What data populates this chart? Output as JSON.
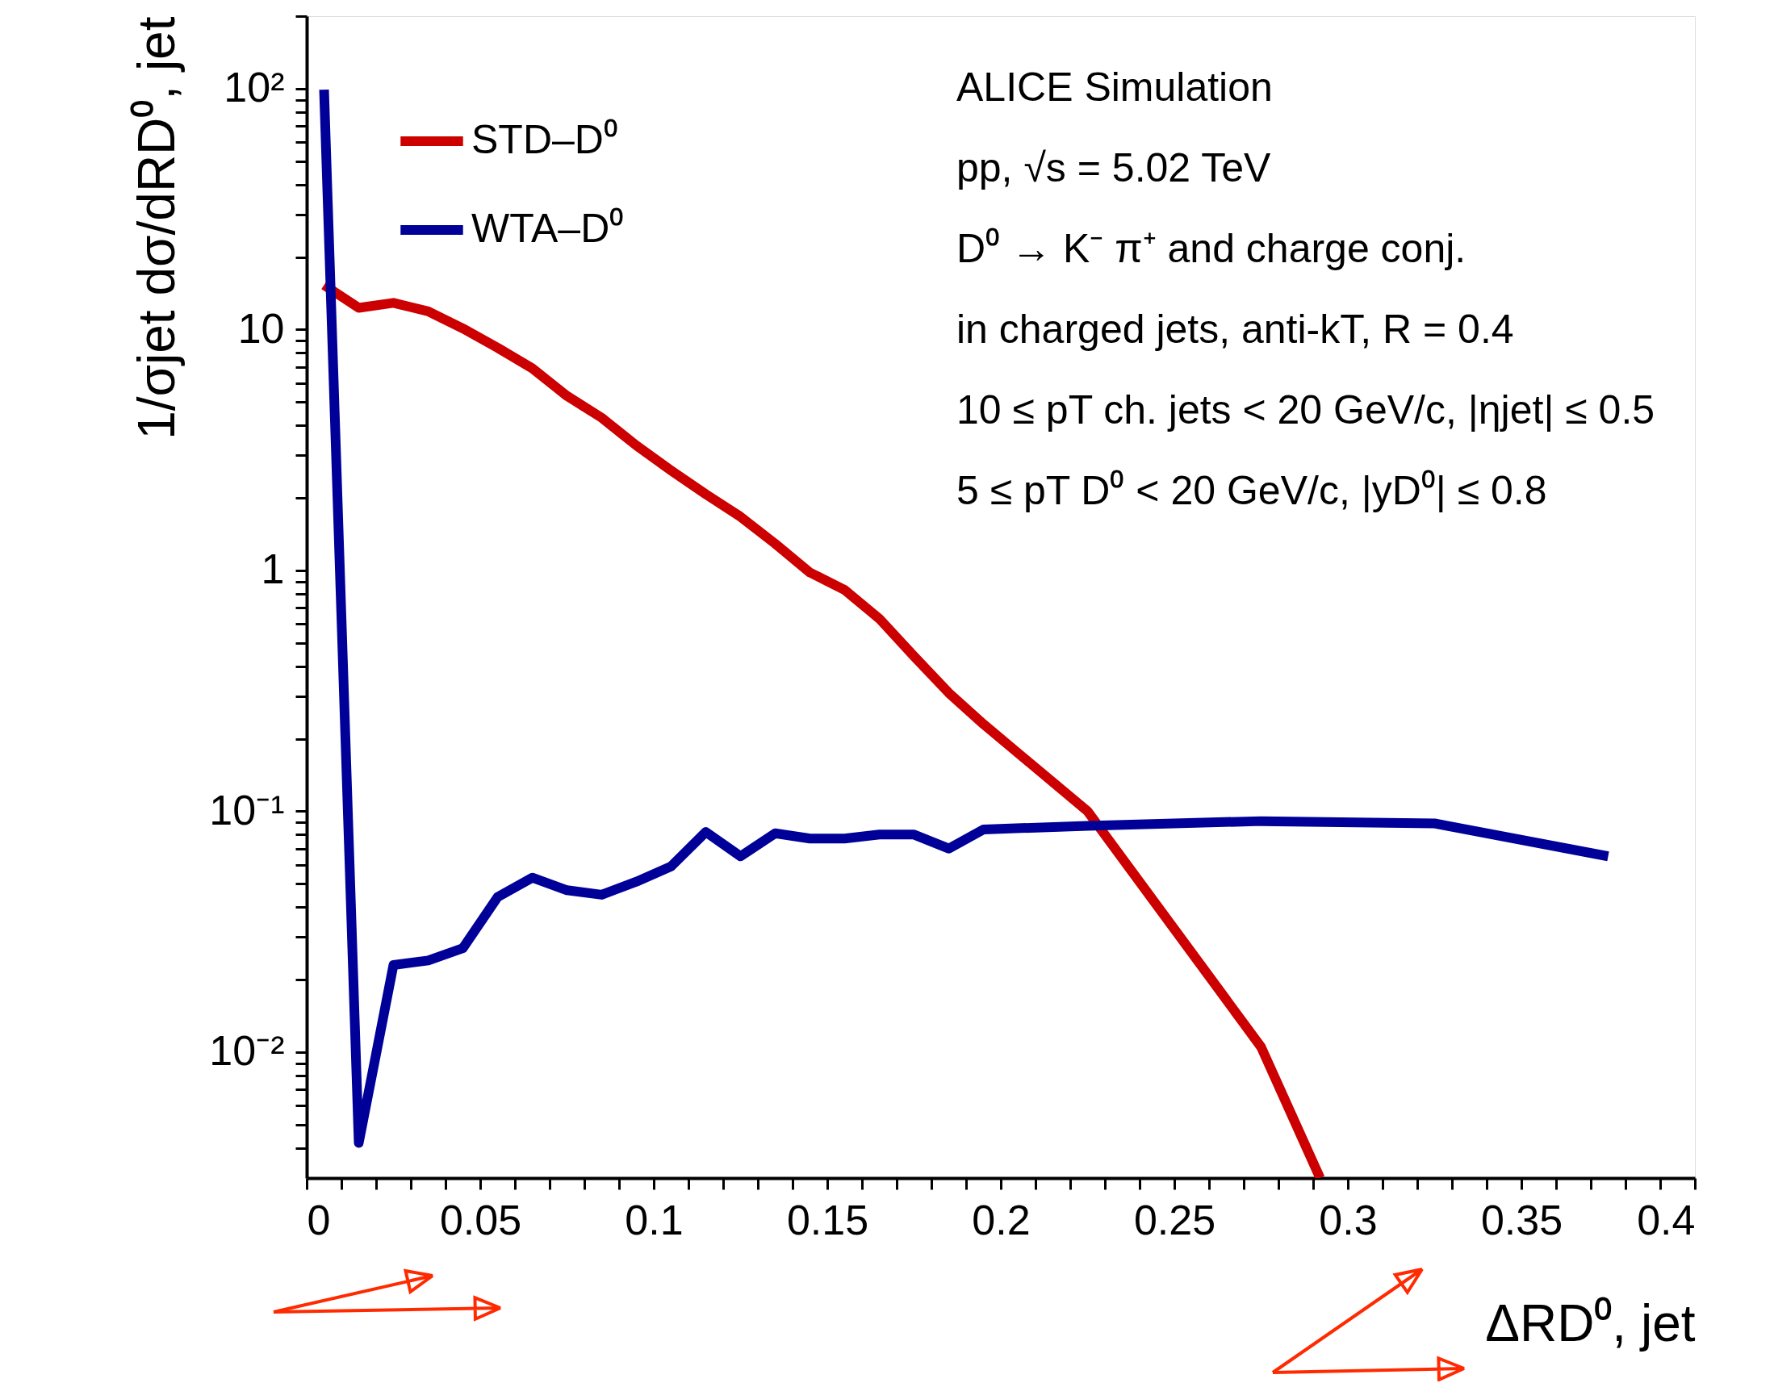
{
  "chart_data": {
    "type": "line",
    "xlabel": "ΔRD⁰, jet",
    "ylabel": "1/σjet dσ/dRD⁰, jet",
    "log": "y",
    "xlim": [
      0,
      0.4
    ],
    "ylim": [
      0.003,
      200
    ],
    "xticks": [
      0,
      {
        "value": 0.01,
        "label": null
      },
      {
        "value": 0.02,
        "label": null
      },
      {
        "value": 0.03,
        "label": null
      },
      {
        "value": 0.04,
        "label": null
      },
      0.05,
      {
        "value": 0.06,
        "label": null
      },
      {
        "value": 0.07,
        "label": null
      },
      {
        "value": 0.08,
        "label": null
      },
      {
        "value": 0.09,
        "label": null
      },
      0.1,
      {
        "value": 0.11,
        "label": null
      },
      {
        "value": 0.12,
        "label": null
      },
      {
        "value": 0.13,
        "label": null
      },
      {
        "value": 0.14,
        "label": null
      },
      0.15,
      {
        "value": 0.16,
        "label": null
      },
      {
        "value": 0.17,
        "label": null
      },
      {
        "value": 0.18,
        "label": null
      },
      {
        "value": 0.19,
        "label": null
      },
      0.2,
      {
        "value": 0.21,
        "label": null
      },
      {
        "value": 0.22,
        "label": null
      },
      {
        "value": 0.23,
        "label": null
      },
      {
        "value": 0.24,
        "label": null
      },
      0.25,
      {
        "value": 0.26,
        "label": null
      },
      {
        "value": 0.27,
        "label": null
      },
      {
        "value": 0.28,
        "label": null
      },
      {
        "value": 0.29,
        "label": null
      },
      0.3,
      {
        "value": 0.31,
        "label": null
      },
      {
        "value": 0.32,
        "label": null
      },
      {
        "value": 0.33,
        "label": null
      },
      {
        "value": 0.34,
        "label": null
      },
      0.35,
      {
        "value": 0.36,
        "label": null
      },
      {
        "value": 0.37,
        "label": null
      },
      {
        "value": 0.38,
        "label": null
      },
      {
        "value": 0.39,
        "label": null
      },
      0.4
    ],
    "yticks": [
      {
        "value": 0.004,
        "label": null
      },
      {
        "value": 0.005,
        "label": null
      },
      {
        "value": 0.006,
        "label": null
      },
      {
        "value": 0.007,
        "label": null
      },
      {
        "value": 0.008,
        "label": null
      },
      {
        "value": 0.009,
        "label": null
      },
      {
        "value": 0.01,
        "label": "10⁻²"
      },
      {
        "value": 0.02,
        "label": null
      },
      {
        "value": 0.03,
        "label": null
      },
      {
        "value": 0.04,
        "label": null
      },
      {
        "value": 0.05,
        "label": null
      },
      {
        "value": 0.06,
        "label": null
      },
      {
        "value": 0.07,
        "label": null
      },
      {
        "value": 0.08,
        "label": null
      },
      {
        "value": 0.09,
        "label": null
      },
      {
        "value": 0.1,
        "label": "10⁻¹"
      },
      {
        "value": 0.2,
        "label": null
      },
      {
        "value": 0.3,
        "label": null
      },
      {
        "value": 0.4,
        "label": null
      },
      {
        "value": 0.5,
        "label": null
      },
      {
        "value": 0.6,
        "label": null
      },
      {
        "value": 0.7,
        "label": null
      },
      {
        "value": 0.8,
        "label": null
      },
      {
        "value": 0.9,
        "label": null
      },
      1,
      {
        "value": 2,
        "label": null
      },
      {
        "value": 3,
        "label": null
      },
      {
        "value": 4,
        "label": null
      },
      {
        "value": 5,
        "label": null
      },
      {
        "value": 6,
        "label": null
      },
      {
        "value": 7,
        "label": null
      },
      {
        "value": 8,
        "label": null
      },
      {
        "value": 9,
        "label": null
      },
      10,
      {
        "value": 20,
        "label": null
      },
      {
        "value": 30,
        "label": null
      },
      {
        "value": 40,
        "label": null
      },
      {
        "value": 50,
        "label": null
      },
      {
        "value": 60,
        "label": null
      },
      {
        "value": 70,
        "label": null
      },
      {
        "value": 80,
        "label": null
      },
      {
        "value": 90,
        "label": null
      },
      {
        "value": 100,
        "label": "10²"
      },
      {
        "value": 200,
        "label": null
      }
    ],
    "legend": "top left",
    "grid": false,
    "series": [
      {
        "name": "STD–D⁰",
        "color": "#cc0000",
        "x": [
          0.005,
          0.015,
          0.025,
          0.035,
          0.045,
          0.055,
          0.065,
          0.075,
          0.085,
          0.095,
          0.105,
          0.115,
          0.125,
          0.135,
          0.145,
          0.155,
          0.165,
          0.175,
          0.185,
          0.195,
          0.225,
          0.275,
          0.292
        ],
        "values": [
          15.3,
          12.3,
          12.9,
          11.9,
          10.1,
          8.4,
          6.9,
          5.3,
          4.3,
          3.3,
          2.6,
          2.07,
          1.67,
          1.29,
          0.98,
          0.83,
          0.63,
          0.44,
          0.31,
          0.23,
          0.1,
          0.0105,
          0.003
        ]
      },
      {
        "name": "WTA–D⁰",
        "color": "#000099",
        "x": [
          0.005,
          0.015,
          0.025,
          0.035,
          0.045,
          0.055,
          0.065,
          0.075,
          0.085,
          0.095,
          0.105,
          0.115,
          0.125,
          0.135,
          0.145,
          0.155,
          0.165,
          0.175,
          0.185,
          0.195,
          0.225,
          0.275,
          0.325,
          0.375
        ],
        "values": [
          99,
          0.0042,
          0.023,
          0.024,
          0.027,
          0.044,
          0.053,
          0.047,
          0.045,
          0.051,
          0.059,
          0.082,
          0.065,
          0.081,
          0.077,
          0.077,
          0.08,
          0.08,
          0.07,
          0.084,
          0.087,
          0.091,
          0.089,
          0.065
        ]
      }
    ],
    "annotations": [
      "ALICE Simulation",
      "pp, √s = 5.02 TeV",
      "D⁰ → K⁻ π⁺ and charge conj.",
      "in charged jets, anti-kT, R = 0.4",
      "10 ≤ pT ch. jets < 20 GeV/c, |ηjet| ≤ 0.5",
      "5 ≤ pT D⁰ < 20 GeV/c, |yD⁰| ≤ 0.8"
    ]
  }
}
